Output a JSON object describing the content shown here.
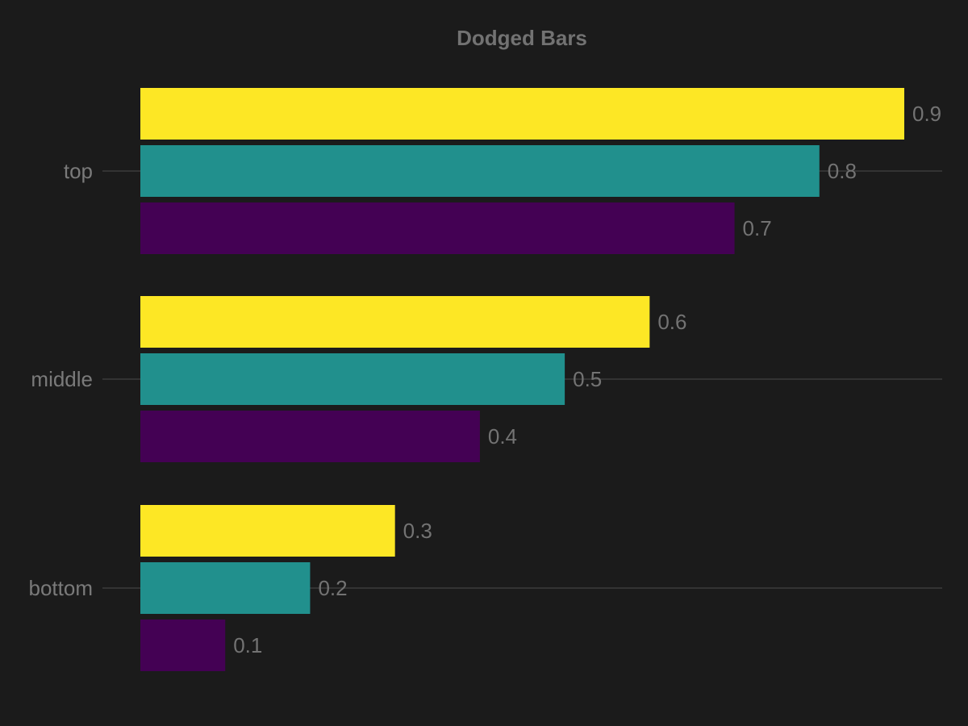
{
  "chart_data": {
    "type": "bar",
    "orientation": "horizontal",
    "title": "Dodged Bars",
    "xlabel": "",
    "ylabel": "",
    "categories": [
      "top",
      "middle",
      "bottom"
    ],
    "series": [
      {
        "color": "#440154",
        "values": [
          0.7,
          0.4,
          0.1
        ]
      },
      {
        "color": "#21908d",
        "values": [
          0.8,
          0.5,
          0.2
        ]
      },
      {
        "color": "#fde725",
        "values": [
          0.9,
          0.6,
          0.3
        ]
      }
    ],
    "xlim": [
      0,
      0.9
    ],
    "data_labels": true,
    "grid": "horizontal lines at categories",
    "legend": "none",
    "colors": {
      "background": "#1b1b1b",
      "text": "#737373",
      "grid": "#333333"
    }
  }
}
